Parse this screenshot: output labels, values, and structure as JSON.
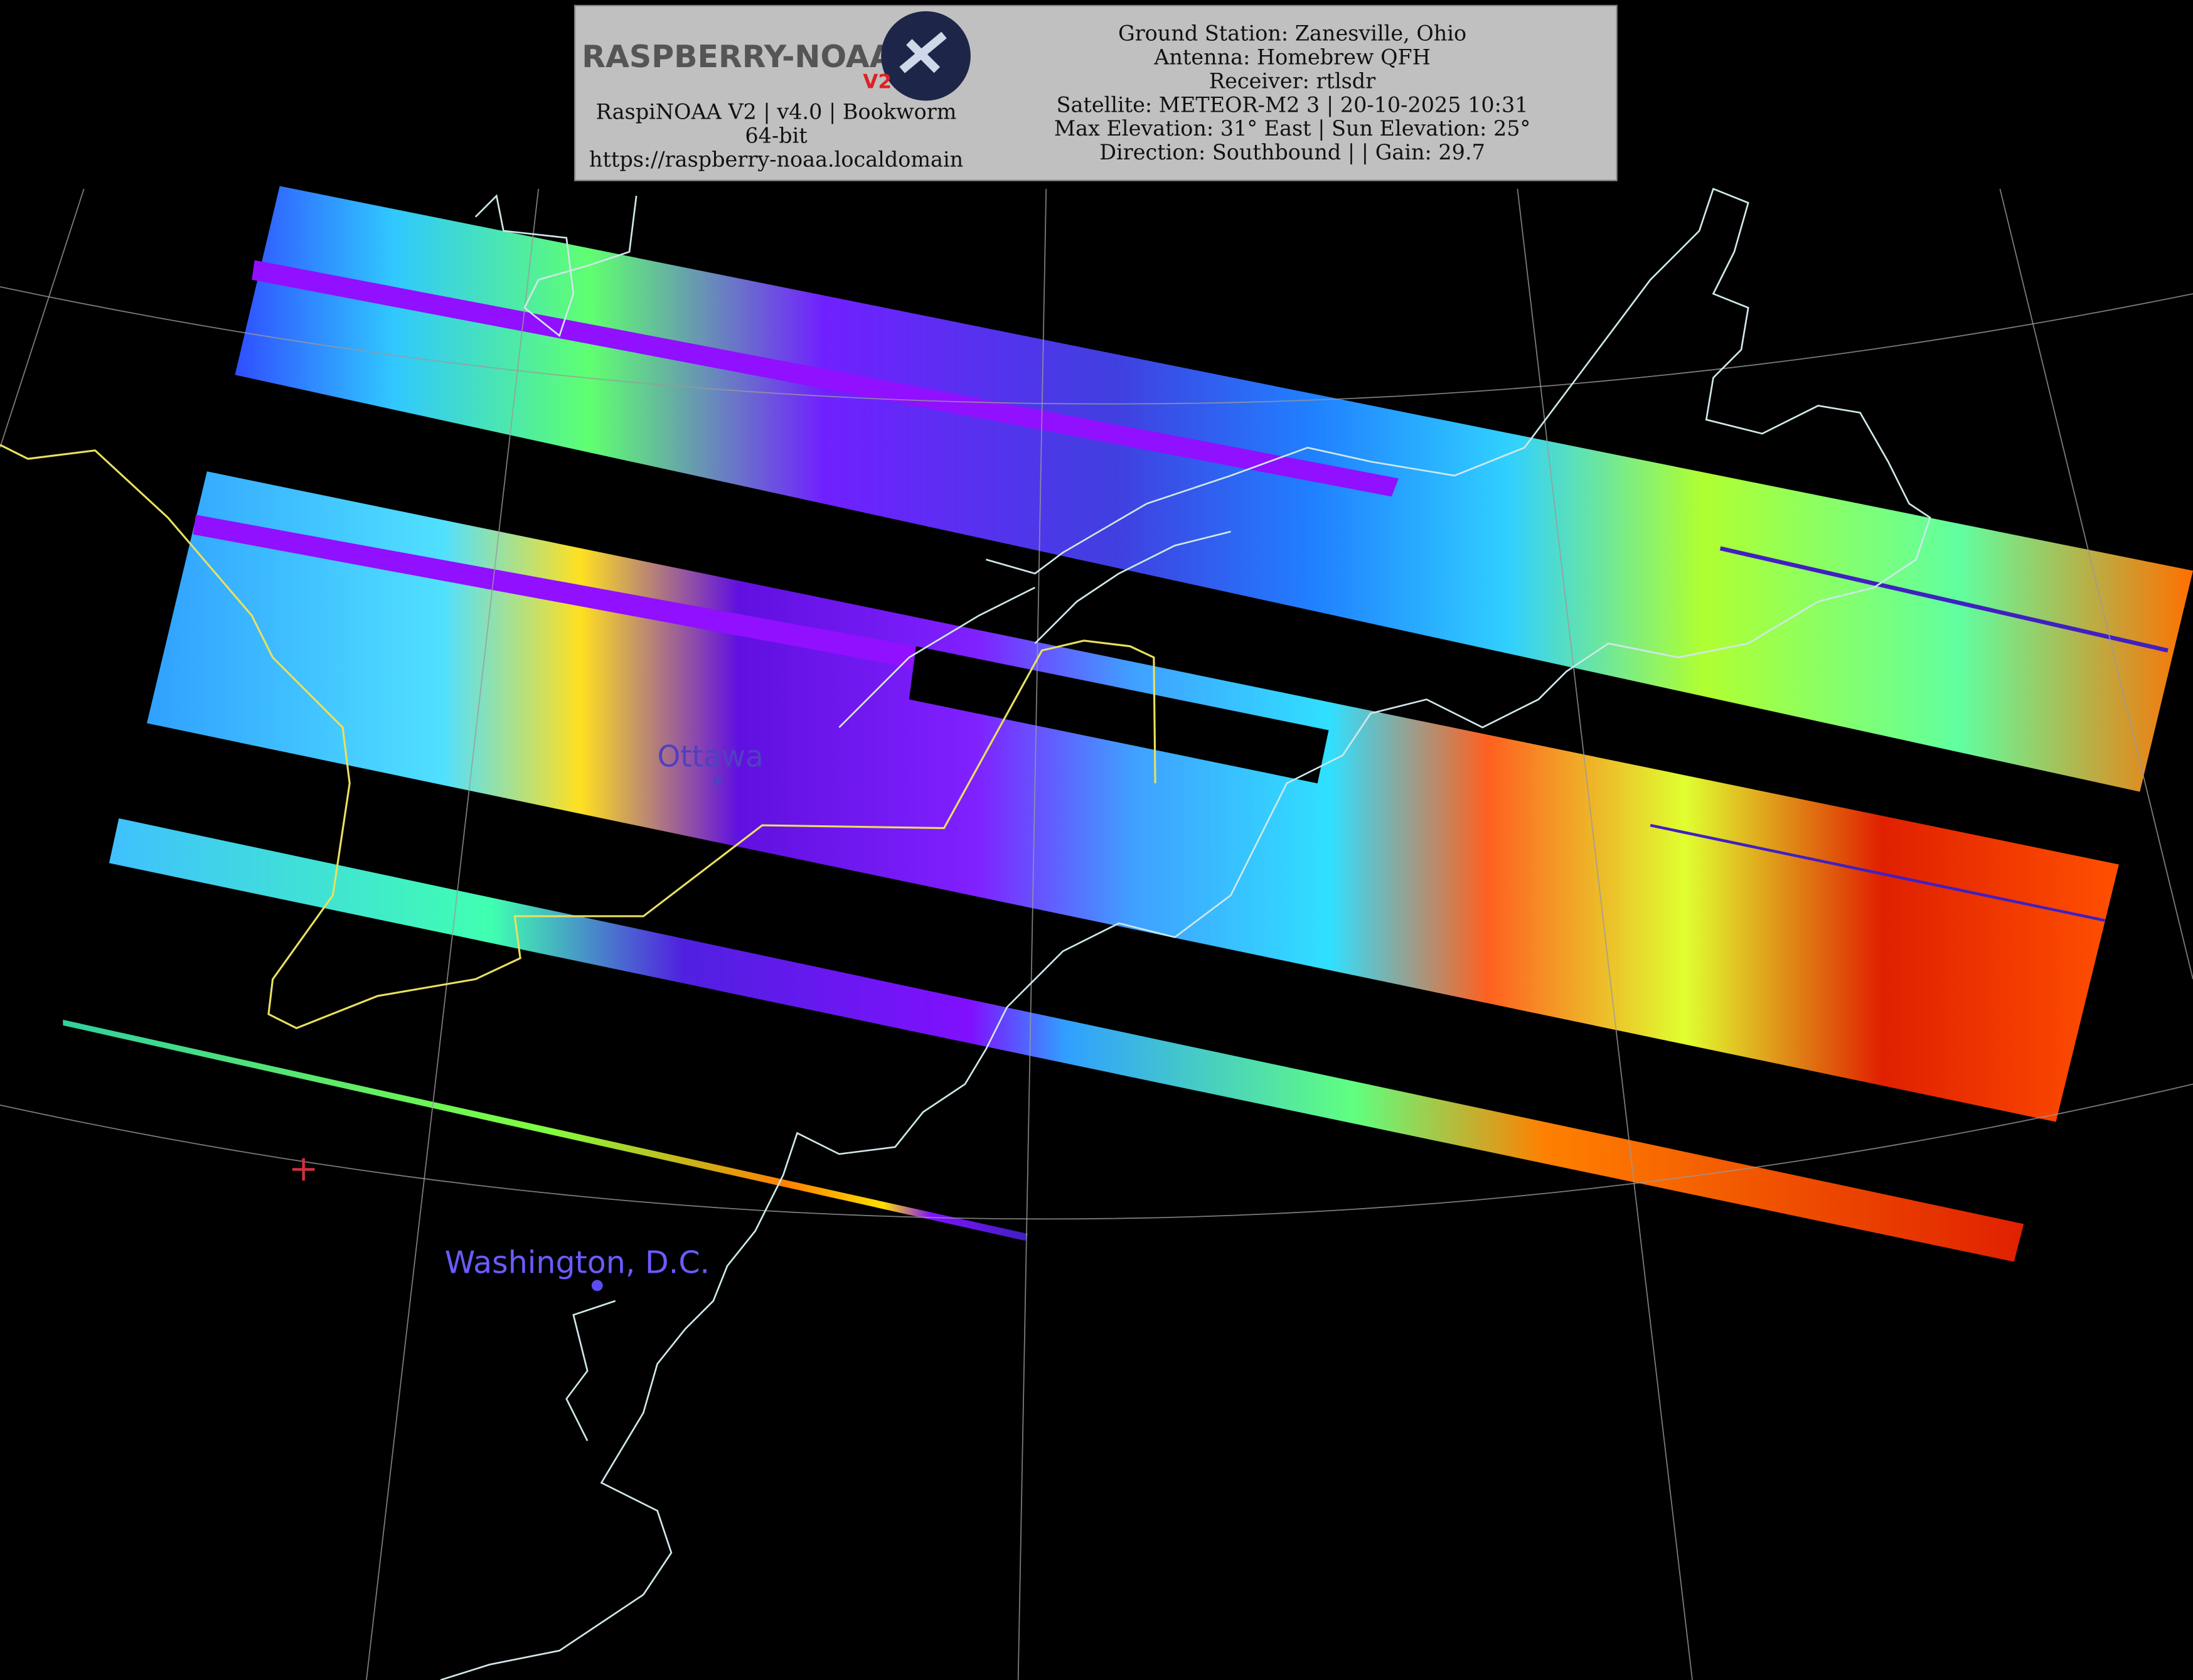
{
  "header": {
    "logo": {
      "title": "RASPBERRY-NOAA",
      "badge": "V2"
    },
    "left_lines": [
      "RaspiNOAA V2 | v4.0 | Bookworm 64-bit",
      "https://raspberry-noaa.localdomain"
    ],
    "right_lines": [
      "Ground Station: Zanesville, Ohio",
      "Antenna: Homebrew QFH",
      "Receiver: rtlsdr",
      "Satellite: METEOR-M2 3 | 20-10-2025 10:31",
      "Max Elevation: 31° East | Sun Elevation: 25°",
      "Direction: Southbound | | Gain: 29.7"
    ]
  },
  "map": {
    "labels": [
      "Ottawa",
      "Washington, D.C."
    ]
  }
}
